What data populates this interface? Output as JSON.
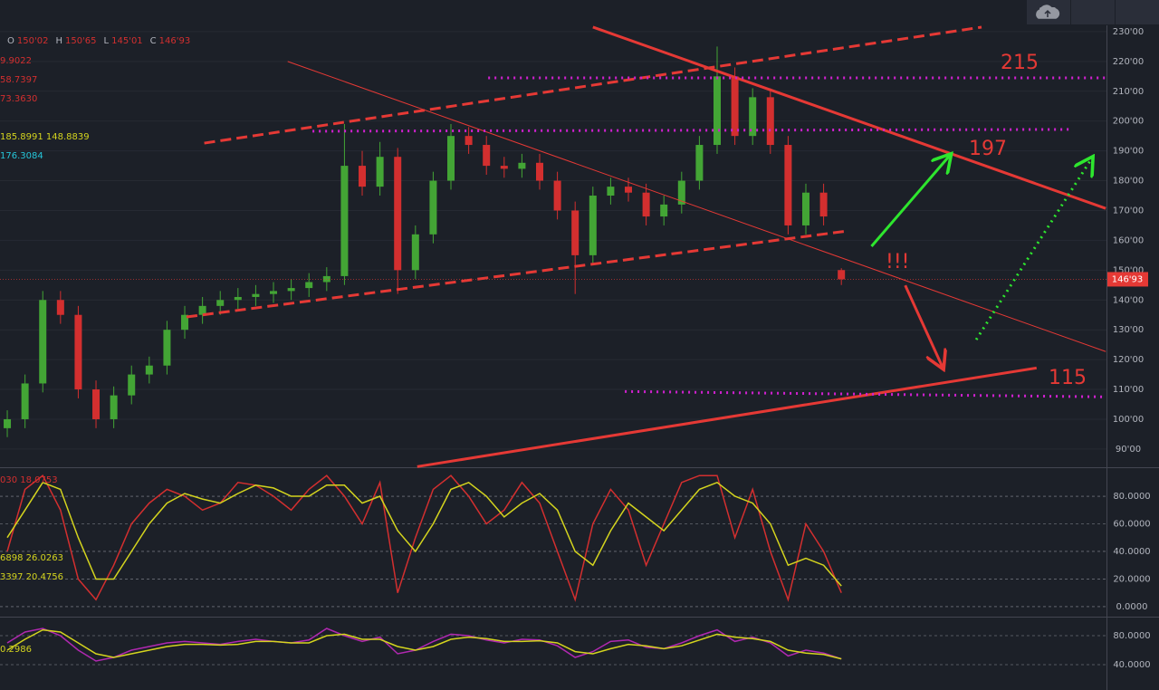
{
  "chart_data": {
    "type": "candlestick",
    "header": [
      {
        "key": "O",
        "label": "150'02"
      },
      {
        "key": "H",
        "label": "150'65"
      },
      {
        "key": "L",
        "label": "145'01"
      },
      {
        "key": "C",
        "label": "146'93"
      }
    ],
    "legend_texts": [
      {
        "text": "9.9022",
        "color": "#d32f2f"
      },
      {
        "text": "58.7397",
        "color": "#d32f2f"
      },
      {
        "text": "73.3630",
        "color": "#d32f2f"
      },
      {
        "text": "185.8991 148.8839",
        "color": "#d4d41e"
      },
      {
        "text": "176.3084",
        "color": "#26c6da"
      }
    ],
    "xlim": [
      -0.41,
      61.94
    ],
    "ylim": [
      84.2,
      232.1
    ],
    "yticks": [
      {
        "value": 90,
        "label": "90'00"
      },
      {
        "value": 100,
        "label": "100'00"
      },
      {
        "value": 110,
        "label": "110'00"
      },
      {
        "value": 120,
        "label": "120'00"
      },
      {
        "value": 130,
        "label": "130'00"
      },
      {
        "value": 140,
        "label": "140'00"
      },
      {
        "value": 150,
        "label": "150'00"
      },
      {
        "value": 160,
        "label": "160'00"
      },
      {
        "value": 170,
        "label": "170'00"
      },
      {
        "value": 180,
        "label": "180'00"
      },
      {
        "value": 190,
        "label": "190'00"
      },
      {
        "value": 200,
        "label": "200'00"
      },
      {
        "value": 210,
        "label": "210'00"
      },
      {
        "value": 220,
        "label": "220'00"
      },
      {
        "value": 230,
        "label": "230'00"
      }
    ],
    "up_color": "#43a535",
    "down_color": "#d32f2f",
    "candles": {
      "open": [
        97,
        100,
        112,
        140,
        135,
        110,
        100,
        108,
        115,
        118,
        130,
        135,
        138,
        140,
        141,
        142,
        143,
        144,
        146,
        148,
        185,
        178,
        188,
        150,
        162,
        180,
        195,
        192,
        185,
        184,
        186,
        180,
        170,
        155,
        175,
        178,
        176,
        168,
        172,
        180,
        192,
        215,
        195,
        208,
        192,
        165,
        176,
        150.02
      ],
      "high": [
        103,
        115,
        143,
        143,
        138,
        113,
        111,
        118,
        121,
        133,
        138,
        141,
        143,
        144,
        145,
        146,
        147,
        149,
        151,
        199,
        190,
        193,
        191,
        165,
        183,
        199,
        198,
        195,
        188,
        189,
        189,
        183,
        173,
        178,
        181,
        181,
        179,
        175,
        183,
        195,
        225,
        218,
        211,
        211,
        195,
        179,
        179,
        150.65
      ],
      "low": [
        94,
        97,
        109,
        132,
        107,
        97,
        97,
        105,
        112,
        115,
        127,
        132,
        135,
        137,
        138,
        139,
        140,
        141,
        143,
        145,
        175,
        175,
        142,
        147,
        159,
        177,
        189,
        182,
        181,
        181,
        177,
        167,
        142,
        152,
        172,
        173,
        165,
        165,
        169,
        177,
        189,
        192,
        192,
        189,
        162,
        162,
        165,
        145.01
      ],
      "close": [
        100,
        112,
        140,
        135,
        110,
        100,
        108,
        115,
        118,
        130,
        135,
        138,
        140,
        141,
        142,
        143,
        144,
        146,
        148,
        185,
        178,
        188,
        150,
        162,
        180,
        195,
        192,
        185,
        184,
        186,
        180,
        170,
        155,
        175,
        178,
        176,
        168,
        172,
        180,
        192,
        215,
        195,
        208,
        192,
        165,
        176,
        168,
        146.93
      ]
    },
    "price_tag": {
      "value": 146.93,
      "label": "146'93",
      "color": "#e53935"
    },
    "drawings": [
      {
        "color": "#e53935",
        "style": "solid",
        "width": 3,
        "points": [
          [
            33.0,
            231.5
          ],
          [
            61.9,
            170.7
          ]
        ]
      },
      {
        "color": "#e53935",
        "style": "dashed",
        "width": 3,
        "points": [
          [
            11.1,
            192.6
          ],
          [
            54.9,
            231.5
          ]
        ]
      },
      {
        "color": "#e53935",
        "style": "dashed",
        "width": 3,
        "points": [
          [
            10.1,
            134.3
          ],
          [
            47.3,
            163.1
          ]
        ]
      },
      {
        "color": "#e53935",
        "style": "solid",
        "width": 1,
        "points": [
          [
            15.8,
            220.0
          ],
          [
            61.9,
            122.7
          ]
        ]
      },
      {
        "color": "#e53935",
        "style": "solid",
        "width": 3,
        "points": [
          [
            23.1,
            84.1
          ],
          [
            58.0,
            117.2
          ]
        ]
      },
      {
        "color": "#d020d0",
        "style": "dotted",
        "width": 3,
        "points": [
          [
            27.1,
            214.5
          ],
          [
            61.9,
            214.5
          ]
        ]
      },
      {
        "color": "#d020d0",
        "style": "dotted",
        "width": 3,
        "points": [
          [
            17.2,
            196.6
          ],
          [
            60.0,
            197.2
          ]
        ]
      },
      {
        "color": "#d020d0",
        "style": "dotted",
        "width": 3,
        "points": [
          [
            34.8,
            109.3
          ],
          [
            61.9,
            107.5
          ]
        ]
      }
    ],
    "arrows": [
      {
        "color": "#2ee62e",
        "style": "solid",
        "points": [
          [
            48.7,
            158.0
          ],
          [
            53.1,
            188.4
          ]
        ]
      },
      {
        "color": "#e53935",
        "style": "solid",
        "points": [
          [
            50.6,
            144.9
          ],
          [
            52.7,
            117.5
          ]
        ]
      },
      {
        "color": "#2ee62e",
        "style": "dotted",
        "points": [
          [
            54.6,
            126.7
          ],
          [
            61.1,
            187.4
          ]
        ]
      }
    ],
    "annotations": [
      "215",
      "197",
      "115",
      "!!!"
    ],
    "panes": [
      {
        "ylim": [
          -6.6,
          99.7
        ],
        "yticks": [
          {
            "value": 0,
            "label": "0.0000"
          },
          {
            "value": 20,
            "label": "20.0000"
          },
          {
            "value": 40,
            "label": "40.0000"
          },
          {
            "value": 60,
            "label": "60.0000"
          },
          {
            "value": 80,
            "label": "80.0000"
          }
        ],
        "legend_texts": [
          {
            "text": "030 18.0753",
            "color": "#d32f2f"
          },
          {
            "text": "6898 26.0263",
            "color": "#d4d41e"
          },
          {
            "text": "3397 20.4756",
            "color": "#d4d41e"
          }
        ],
        "series": [
          {
            "color": "#d32f2f",
            "values": [
              40,
              85,
              95,
              70,
              20,
              5,
              30,
              60,
              75,
              85,
              80,
              70,
              75,
              90,
              88,
              80,
              70,
              85,
              95,
              80,
              60,
              90,
              10,
              50,
              85,
              95,
              80,
              60,
              70,
              90,
              75,
              40,
              5,
              60,
              85,
              70,
              30,
              60,
              90,
              95,
              95,
              50,
              85,
              40,
              5,
              60,
              40,
              10
            ]
          },
          {
            "color": "#d4d41e",
            "values": [
              50,
              70,
              90,
              85,
              50,
              20,
              20,
              40,
              60,
              75,
              82,
              78,
              75,
              82,
              88,
              86,
              80,
              80,
              88,
              88,
              75,
              80,
              55,
              40,
              60,
              85,
              90,
              80,
              65,
              75,
              82,
              70,
              40,
              30,
              55,
              75,
              65,
              55,
              70,
              85,
              90,
              80,
              75,
              60,
              30,
              35,
              30,
              15
            ]
          }
        ]
      },
      {
        "ylim": [
          5,
          103.75
        ],
        "yticks": [
          {
            "value": 40,
            "label": "40.0000"
          },
          {
            "value": 80,
            "label": "80.0000"
          }
        ],
        "legend_texts": [
          {
            "text": "0.2986",
            "color": "#d4d41e"
          }
        ],
        "series": [
          {
            "color": "#b028b0",
            "values": [
              70,
              85,
              90,
              80,
              60,
              45,
              50,
              60,
              65,
              70,
              72,
              70,
              68,
              72,
              75,
              72,
              70,
              74,
              90,
              80,
              72,
              78,
              55,
              60,
              72,
              82,
              80,
              74,
              70,
              75,
              74,
              66,
              50,
              58,
              72,
              74,
              64,
              62,
              70,
              80,
              88,
              72,
              78,
              70,
              52,
              60,
              56,
              48
            ]
          },
          {
            "color": "#d4d41e",
            "values": [
              60,
              75,
              88,
              85,
              70,
              55,
              50,
              55,
              60,
              65,
              68,
              68,
              67,
              68,
              72,
              72,
              70,
              70,
              80,
              82,
              75,
              75,
              65,
              60,
              65,
              75,
              78,
              76,
              72,
              72,
              73,
              70,
              58,
              55,
              62,
              68,
              66,
              62,
              66,
              74,
              82,
              78,
              76,
              72,
              60,
              56,
              54,
              48
            ]
          }
        ]
      }
    ]
  }
}
